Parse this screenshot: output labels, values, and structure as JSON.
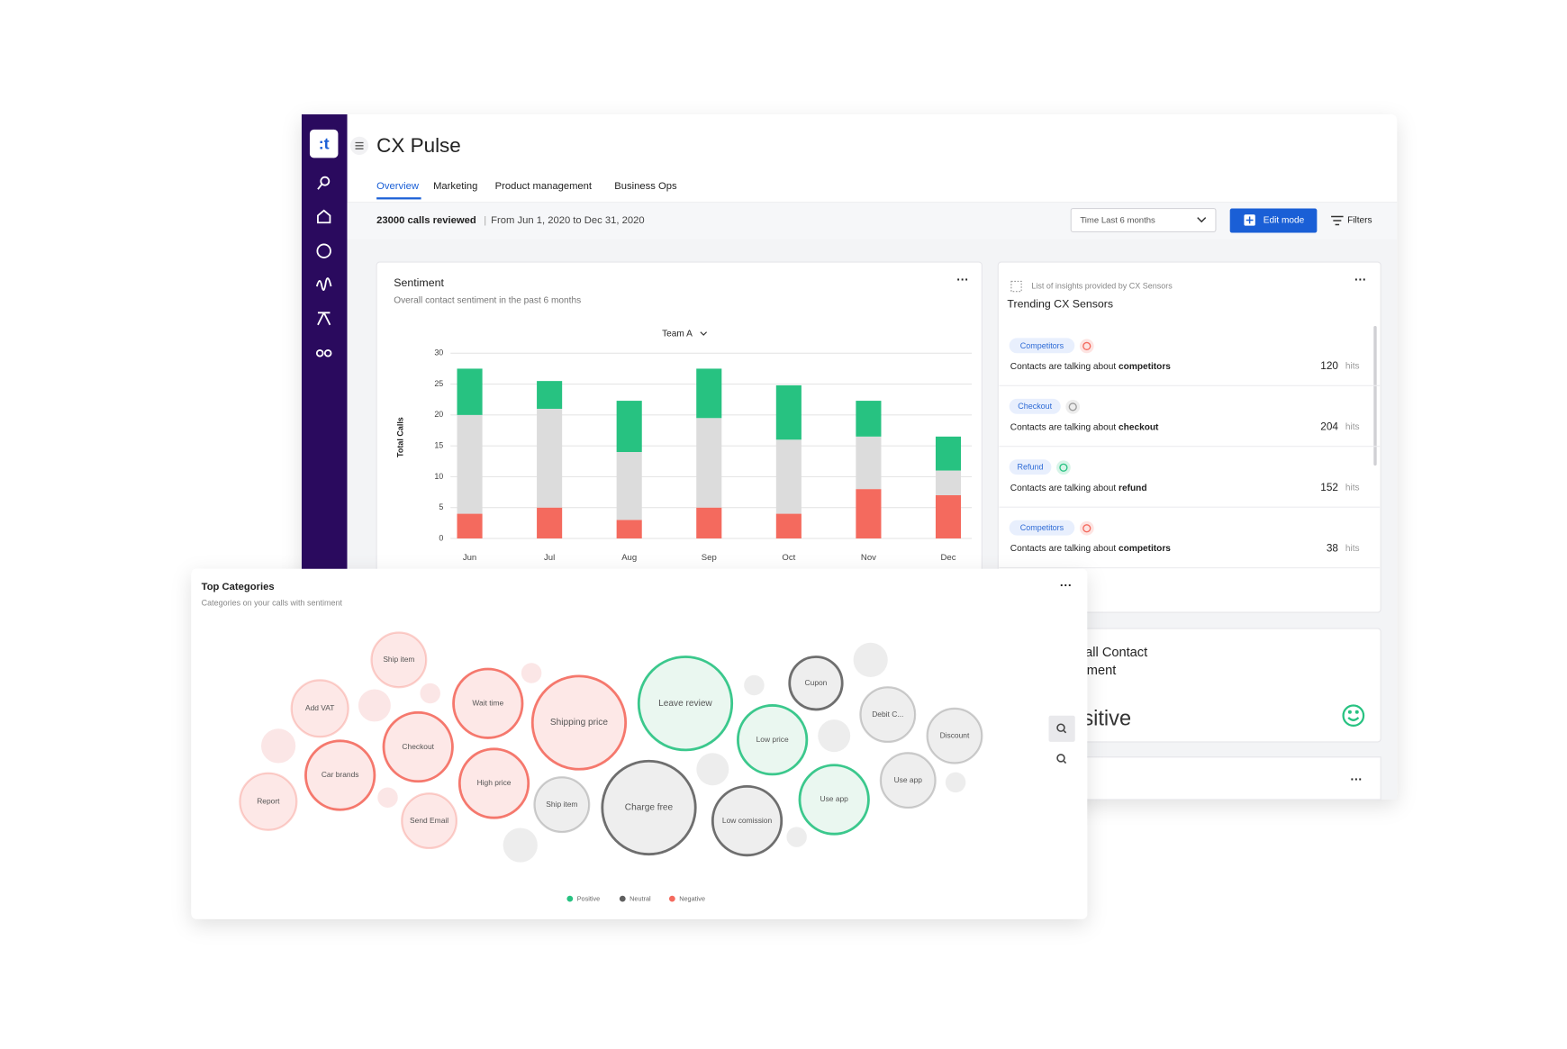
{
  "header": {
    "title": "CX Pulse",
    "tabs": [
      "Overview",
      "Marketing",
      "Product management",
      "Business Ops"
    ]
  },
  "toolbar": {
    "calls": "23000 calls reviewed",
    "separator": "|",
    "range": "From Jun 1, 2020 to Dec 31, 2020",
    "time_filter": "Time Last 6 months",
    "edit": "Edit mode",
    "filters": "Filters"
  },
  "chart_data": {
    "type": "bar",
    "stacked": true,
    "title": "Sentiment",
    "subtitle": "Overall contact sentiment in the past 6 months",
    "selector": "Team A",
    "ylabel": "Total Calls",
    "categories": [
      "Jun",
      "Jul",
      "Aug",
      "Sep",
      "Oct",
      "Nov",
      "Dec"
    ],
    "series": [
      {
        "color": "#f46a5e",
        "values": [
          4,
          5,
          3,
          5,
          4,
          8,
          7
        ]
      },
      {
        "color": "#dcdcdc",
        "values": [
          16,
          16,
          11,
          14.5,
          12,
          8.5,
          4
        ]
      },
      {
        "color": "#27c281",
        "values": [
          7.5,
          4.5,
          8.3,
          8,
          8.8,
          5.8,
          5.5
        ]
      }
    ],
    "ylim": [
      0,
      30
    ],
    "yticks": [
      0,
      5,
      10,
      15,
      20,
      25,
      30
    ],
    "grid": true
  },
  "sensors": {
    "caption": "List of insights provided by CX Sensors",
    "title": "Trending CX Sensors",
    "items": [
      {
        "tag": "Competitors",
        "icon_color": "#f46a5e",
        "text": "Contacts are talking about ",
        "keyword": "competitors",
        "hits": 120,
        "unit": "hits"
      },
      {
        "tag": "Checkout",
        "icon_color": "#9a9a9a",
        "text": "Contacts are talking about ",
        "keyword": "checkout",
        "hits": 204,
        "unit": "hits"
      },
      {
        "tag": "Refund",
        "icon_color": "#27c281",
        "text": "Contacts are talking about ",
        "keyword": "refund",
        "hits": 152,
        "unit": "hits"
      },
      {
        "tag": "Competitors",
        "icon_color": "#f46a5e",
        "text": "Contacts are talking about ",
        "keyword": "competitors",
        "hits": 38,
        "unit": "hits"
      }
    ]
  },
  "overall": {
    "title_line1": "Overall Contact",
    "title_line2": "Sentiment",
    "value": "Positive"
  },
  "categories_panel": {
    "title": "Top Categories",
    "subtitle": "Categories on your calls with sentiment",
    "legend": [
      {
        "name": "Positive",
        "color": "#27c281"
      },
      {
        "name": "Neutral",
        "color": "#5f5f5f"
      },
      {
        "name": "Negative",
        "color": "#f46a5e"
      }
    ],
    "bubbles": [
      {
        "label": "Ship item",
        "sentiment": 2
      },
      {
        "label": "Add VAT",
        "sentiment": 2
      },
      {
        "label": "Wait time",
        "sentiment": 2
      },
      {
        "label": "Shipping price",
        "sentiment": 2
      },
      {
        "label": "Leave review",
        "sentiment": 0
      },
      {
        "label": "Cupon",
        "sentiment": 1
      },
      {
        "label": "Debit C...",
        "sentiment": 1
      },
      {
        "label": "Discount",
        "sentiment": 1
      },
      {
        "label": "Checkout",
        "sentiment": 2
      },
      {
        "label": "Car brands",
        "sentiment": 2
      },
      {
        "label": "Report",
        "sentiment": 2
      },
      {
        "label": "High price",
        "sentiment": 2
      },
      {
        "label": "Ship item",
        "sentiment": 1
      },
      {
        "label": "Charge free",
        "sentiment": 1
      },
      {
        "label": "Low price",
        "sentiment": 0
      },
      {
        "label": "Use app",
        "sentiment": 0
      },
      {
        "label": "Use app",
        "sentiment": 1
      },
      {
        "label": "Low comission",
        "sentiment": 1
      },
      {
        "label": "Send Email",
        "sentiment": 2
      }
    ]
  }
}
